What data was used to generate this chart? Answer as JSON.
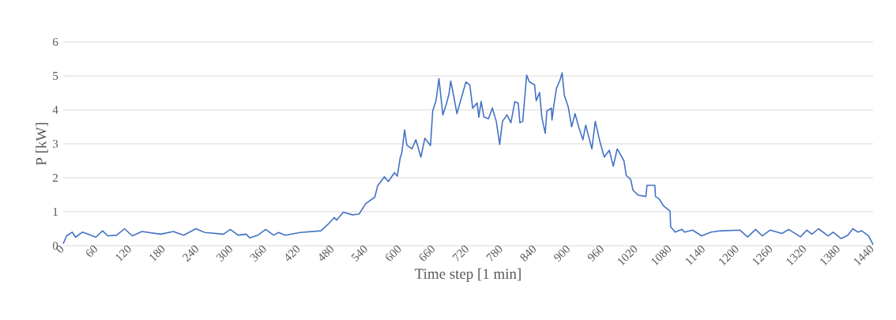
{
  "chart_data": {
    "type": "line",
    "xlabel": "Time step [1 min]",
    "ylabel": "P [kW]",
    "color": "#4472c4",
    "grid": "y",
    "xlim": [
      0,
      1440
    ],
    "xticks": [
      0,
      60,
      120,
      180,
      240,
      300,
      360,
      420,
      480,
      540,
      600,
      660,
      720,
      780,
      840,
      900,
      960,
      1020,
      1080,
      1140,
      1200,
      1260,
      1320,
      1380,
      1440
    ],
    "ylim": [
      0,
      6
    ],
    "yticks": [
      0,
      1,
      2,
      3,
      4,
      5,
      6
    ],
    "x": [
      0,
      6,
      16,
      22,
      34,
      46,
      58,
      70,
      79,
      95,
      109,
      123,
      140,
      173,
      196,
      214,
      236,
      252,
      285,
      297,
      311,
      325,
      332,
      346,
      360,
      374,
      383,
      395,
      421,
      458,
      472,
      482,
      486,
      498,
      514,
      526,
      538,
      554,
      559,
      571,
      578,
      589,
      594,
      599,
      602,
      607,
      611,
      620,
      627,
      636,
      643,
      653,
      657,
      663,
      668,
      675,
      681,
      686,
      689,
      694,
      700,
      706,
      716,
      723,
      728,
      736,
      739,
      743,
      748,
      756,
      763,
      770,
      776,
      781,
      789,
      796,
      803,
      809,
      812,
      817,
      824,
      829,
      838,
      841,
      847,
      851,
      857,
      860,
      868,
      869,
      873,
      877,
      883,
      887,
      891,
      898,
      904,
      910,
      917,
      924,
      929,
      940,
      946,
      954,
      962,
      971,
      978,
      985,
      997,
      1001,
      1009,
      1013,
      1022,
      1036,
      1038,
      1052,
      1053,
      1060,
      1067,
      1079,
      1080,
      1088,
      1100,
      1105,
      1119,
      1135,
      1152,
      1170,
      1203,
      1217,
      1231,
      1243,
      1257,
      1278,
      1290,
      1311,
      1322,
      1331,
      1343,
      1360,
      1369,
      1383,
      1395,
      1404,
      1413,
      1420,
      1432,
      1440
    ],
    "values": [
      0.06,
      0.29,
      0.4,
      0.25,
      0.4,
      0.33,
      0.25,
      0.44,
      0.29,
      0.31,
      0.5,
      0.29,
      0.42,
      0.34,
      0.42,
      0.31,
      0.5,
      0.39,
      0.34,
      0.48,
      0.31,
      0.34,
      0.23,
      0.31,
      0.48,
      0.31,
      0.39,
      0.31,
      0.39,
      0.44,
      0.65,
      0.83,
      0.75,
      0.99,
      0.91,
      0.93,
      1.24,
      1.43,
      1.76,
      2.03,
      1.89,
      2.15,
      2.05,
      2.57,
      2.73,
      3.41,
      2.96,
      2.85,
      3.12,
      2.61,
      3.16,
      2.95,
      3.97,
      4.28,
      4.92,
      3.85,
      4.16,
      4.47,
      4.85,
      4.43,
      3.89,
      4.24,
      4.82,
      4.73,
      4.05,
      4.2,
      3.78,
      4.25,
      3.79,
      3.74,
      4.05,
      3.66,
      2.98,
      3.66,
      3.85,
      3.62,
      4.24,
      4.2,
      3.62,
      3.66,
      5.02,
      4.82,
      4.74,
      4.27,
      4.51,
      3.78,
      3.31,
      3.97,
      4.05,
      3.7,
      4.2,
      4.63,
      4.86,
      5.09,
      4.43,
      4.08,
      3.5,
      3.89,
      3.47,
      3.12,
      3.55,
      2.85,
      3.66,
      3.08,
      2.61,
      2.81,
      2.34,
      2.85,
      2.5,
      2.07,
      1.95,
      1.64,
      1.49,
      1.45,
      1.78,
      1.78,
      1.45,
      1.37,
      1.18,
      1.02,
      0.56,
      0.4,
      0.48,
      0.4,
      0.46,
      0.29,
      0.4,
      0.44,
      0.46,
      0.26,
      0.48,
      0.29,
      0.46,
      0.36,
      0.48,
      0.26,
      0.46,
      0.34,
      0.5,
      0.29,
      0.4,
      0.21,
      0.31,
      0.5,
      0.4,
      0.44,
      0.29,
      0.03
    ]
  }
}
